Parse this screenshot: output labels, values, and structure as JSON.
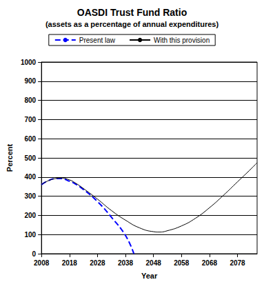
{
  "chart_data": {
    "type": "line",
    "title": "OASDI Trust Fund Ratio",
    "subtitle": "(assets as a percentage of annual expenditures)",
    "x_label": "Year",
    "y_label": "Percent",
    "xlim": [
      2008,
      2085
    ],
    "xticks": [
      2008,
      2018,
      2028,
      2038,
      2048,
      2058,
      2068,
      2078
    ],
    "ylim": [
      0,
      1000
    ],
    "yticks": [
      0,
      100,
      200,
      300,
      400,
      500,
      600,
      700,
      800,
      900,
      1000
    ],
    "grid": true,
    "legend": "top",
    "series": [
      {
        "name": "Present law",
        "color": "#0000ff",
        "line_style": "dashed",
        "x": [
          2008,
          2010,
          2013,
          2015,
          2018,
          2020,
          2023,
          2028,
          2033,
          2038,
          2041
        ],
        "values": [
          360,
          378,
          392,
          392,
          378,
          365,
          335,
          272,
          190,
          95,
          0
        ]
      },
      {
        "name": "With this provision",
        "color": "#000000",
        "line_style": "solid",
        "x": [
          2008,
          2010,
          2013,
          2015,
          2018,
          2020,
          2023,
          2028,
          2033,
          2038,
          2043,
          2048,
          2050,
          2053,
          2058,
          2063,
          2068,
          2073,
          2078,
          2083,
          2085
        ],
        "values": [
          360,
          378,
          392,
          395,
          385,
          370,
          340,
          285,
          225,
          175,
          135,
          115,
          113,
          120,
          145,
          185,
          240,
          305,
          375,
          445,
          475
        ]
      }
    ]
  }
}
